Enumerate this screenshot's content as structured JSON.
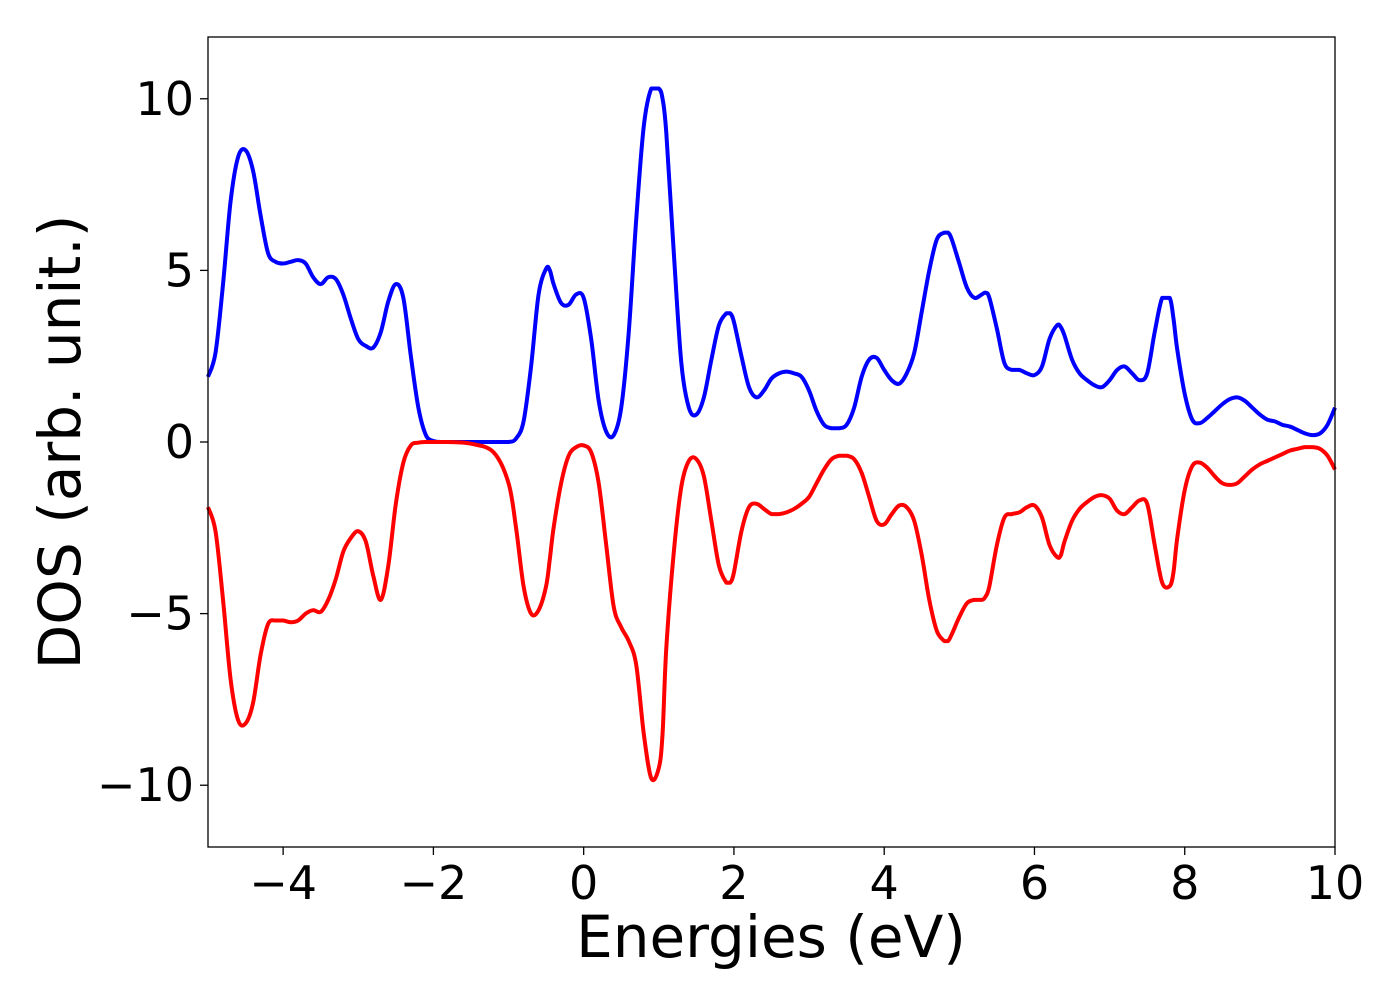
{
  "chart_data": {
    "type": "line",
    "title": "",
    "xlabel": "Energies (eV)",
    "ylabel": "DOS (arb. unit.)",
    "xlim": [
      -5,
      10
    ],
    "ylim": [
      -11.8,
      11.8
    ],
    "xticks": [
      -4,
      -2,
      0,
      2,
      4,
      6,
      8,
      10
    ],
    "xtick_labels": [
      "−4",
      "−2",
      "0",
      "2",
      "4",
      "6",
      "8",
      "10"
    ],
    "yticks": [
      -10,
      -5,
      0,
      5,
      10
    ],
    "ytick_labels": [
      "−10",
      "−5",
      "0",
      "5",
      "10"
    ],
    "grid": false,
    "legend": "none",
    "series": [
      {
        "color": "#0000ff",
        "x": [
          -5.0,
          -4.9,
          -4.8,
          -4.7,
          -4.6,
          -4.5,
          -4.4,
          -4.3,
          -4.2,
          -4.1,
          -4.0,
          -3.9,
          -3.8,
          -3.7,
          -3.6,
          -3.5,
          -3.4,
          -3.3,
          -3.2,
          -3.1,
          -3.0,
          -2.9,
          -2.8,
          -2.7,
          -2.6,
          -2.5,
          -2.4,
          -2.3,
          -2.2,
          -2.1,
          -2.0,
          -1.9,
          -1.8,
          -1.5,
          -1.2,
          -1.0,
          -0.9,
          -0.8,
          -0.7,
          -0.6,
          -0.5,
          -0.45,
          -0.4,
          -0.3,
          -0.2,
          -0.1,
          0.0,
          0.1,
          0.2,
          0.3,
          0.4,
          0.5,
          0.6,
          0.7,
          0.8,
          0.9,
          1.0,
          1.05,
          1.1,
          1.2,
          1.3,
          1.4,
          1.5,
          1.6,
          1.7,
          1.8,
          1.9,
          1.95,
          2.0,
          2.1,
          2.2,
          2.3,
          2.4,
          2.5,
          2.6,
          2.7,
          2.8,
          2.9,
          3.0,
          3.1,
          3.2,
          3.3,
          3.4,
          3.5,
          3.6,
          3.7,
          3.8,
          3.9,
          4.0,
          4.1,
          4.2,
          4.3,
          4.4,
          4.5,
          4.6,
          4.7,
          4.8,
          4.85,
          4.9,
          5.0,
          5.1,
          5.2,
          5.3,
          5.35,
          5.4,
          5.5,
          5.6,
          5.7,
          5.8,
          5.9,
          6.0,
          6.1,
          6.2,
          6.3,
          6.35,
          6.4,
          6.5,
          6.6,
          6.7,
          6.8,
          6.9,
          7.0,
          7.1,
          7.2,
          7.3,
          7.4,
          7.5,
          7.6,
          7.7,
          7.8,
          7.85,
          7.9,
          8.0,
          8.1,
          8.2,
          8.3,
          8.4,
          8.5,
          8.6,
          8.7,
          8.8,
          8.9,
          9.0,
          9.1,
          9.2,
          9.3,
          9.4,
          9.5,
          9.6,
          9.7,
          9.8,
          9.9,
          10.0
        ],
        "y": [
          1.9,
          2.6,
          4.6,
          7.0,
          8.3,
          8.5,
          7.9,
          6.6,
          5.5,
          5.25,
          5.2,
          5.25,
          5.3,
          5.2,
          4.8,
          4.6,
          4.8,
          4.75,
          4.3,
          3.6,
          3.0,
          2.8,
          2.75,
          3.2,
          4.1,
          4.6,
          4.2,
          2.5,
          1.0,
          0.2,
          0.03,
          0.0,
          0.0,
          0.0,
          0.0,
          0.0,
          0.1,
          0.6,
          2.2,
          4.3,
          5.05,
          5.0,
          4.6,
          4.05,
          4.0,
          4.3,
          4.2,
          3.0,
          1.2,
          0.3,
          0.2,
          1.0,
          3.2,
          6.5,
          9.2,
          10.3,
          10.3,
          10.0,
          9.0,
          5.5,
          2.3,
          1.0,
          0.8,
          1.3,
          2.4,
          3.4,
          3.75,
          3.75,
          3.5,
          2.5,
          1.6,
          1.3,
          1.5,
          1.85,
          2.0,
          2.05,
          2.0,
          1.9,
          1.5,
          0.9,
          0.5,
          0.4,
          0.4,
          0.5,
          1.0,
          1.9,
          2.4,
          2.45,
          2.1,
          1.8,
          1.7,
          2.0,
          2.6,
          3.8,
          5.0,
          5.9,
          6.1,
          6.1,
          5.9,
          5.2,
          4.5,
          4.2,
          4.3,
          4.35,
          4.2,
          3.3,
          2.3,
          2.1,
          2.1,
          2.0,
          1.95,
          2.2,
          3.0,
          3.4,
          3.35,
          3.1,
          2.4,
          2.0,
          1.8,
          1.65,
          1.6,
          1.8,
          2.1,
          2.2,
          2.0,
          1.8,
          2.0,
          3.2,
          4.2,
          4.2,
          3.6,
          2.7,
          1.4,
          0.65,
          0.55,
          0.7,
          0.9,
          1.1,
          1.25,
          1.3,
          1.2,
          1.0,
          0.8,
          0.65,
          0.6,
          0.5,
          0.45,
          0.35,
          0.25,
          0.2,
          0.25,
          0.5,
          1.0
        ]
      },
      {
        "color": "#ff0000",
        "x": [
          -5.0,
          -4.9,
          -4.8,
          -4.7,
          -4.6,
          -4.5,
          -4.4,
          -4.3,
          -4.2,
          -4.1,
          -4.0,
          -3.9,
          -3.8,
          -3.7,
          -3.6,
          -3.5,
          -3.4,
          -3.3,
          -3.2,
          -3.1,
          -3.0,
          -2.9,
          -2.8,
          -2.7,
          -2.6,
          -2.5,
          -2.4,
          -2.3,
          -2.2,
          -2.1,
          -2.0,
          -1.9,
          -1.8,
          -1.5,
          -1.2,
          -1.0,
          -0.9,
          -0.8,
          -0.7,
          -0.6,
          -0.5,
          -0.45,
          -0.4,
          -0.3,
          -0.2,
          -0.1,
          0.0,
          0.1,
          0.2,
          0.3,
          0.4,
          0.5,
          0.6,
          0.7,
          0.8,
          0.9,
          1.0,
          1.05,
          1.1,
          1.2,
          1.3,
          1.4,
          1.5,
          1.6,
          1.7,
          1.8,
          1.9,
          1.95,
          2.0,
          2.1,
          2.2,
          2.3,
          2.4,
          2.5,
          2.6,
          2.7,
          2.8,
          2.9,
          3.0,
          3.1,
          3.2,
          3.3,
          3.4,
          3.5,
          3.6,
          3.7,
          3.8,
          3.9,
          4.0,
          4.1,
          4.2,
          4.3,
          4.4,
          4.5,
          4.6,
          4.7,
          4.8,
          4.85,
          4.9,
          5.0,
          5.1,
          5.2,
          5.3,
          5.35,
          5.4,
          5.5,
          5.6,
          5.7,
          5.8,
          5.9,
          6.0,
          6.1,
          6.2,
          6.3,
          6.35,
          6.4,
          6.5,
          6.6,
          6.7,
          6.8,
          6.9,
          7.0,
          7.1,
          7.2,
          7.3,
          7.4,
          7.5,
          7.6,
          7.7,
          7.8,
          7.85,
          7.9,
          8.0,
          8.1,
          8.2,
          8.3,
          8.4,
          8.5,
          8.6,
          8.7,
          8.8,
          8.9,
          9.0,
          9.1,
          9.2,
          9.3,
          9.4,
          9.5,
          9.6,
          9.7,
          9.8,
          9.9,
          10.0
        ],
        "y": [
          -1.9,
          -2.6,
          -4.6,
          -6.9,
          -8.1,
          -8.2,
          -7.6,
          -6.2,
          -5.3,
          -5.2,
          -5.2,
          -5.25,
          -5.2,
          -5.0,
          -4.9,
          -4.95,
          -4.6,
          -4.0,
          -3.2,
          -2.8,
          -2.6,
          -2.9,
          -3.9,
          -4.6,
          -3.6,
          -1.8,
          -0.6,
          -0.1,
          -0.02,
          0.0,
          0.0,
          0.0,
          0.0,
          -0.05,
          -0.3,
          -1.2,
          -2.5,
          -4.2,
          -5.0,
          -4.9,
          -4.2,
          -3.4,
          -2.5,
          -1.2,
          -0.4,
          -0.15,
          -0.1,
          -0.3,
          -1.2,
          -3.0,
          -4.8,
          -5.4,
          -5.8,
          -6.5,
          -8.5,
          -9.8,
          -9.5,
          -8.5,
          -6.0,
          -3.2,
          -1.3,
          -0.55,
          -0.5,
          -1.0,
          -2.3,
          -3.6,
          -4.1,
          -4.1,
          -3.8,
          -2.6,
          -1.9,
          -1.8,
          -1.95,
          -2.1,
          -2.1,
          -2.05,
          -1.95,
          -1.8,
          -1.6,
          -1.2,
          -0.8,
          -0.5,
          -0.4,
          -0.4,
          -0.5,
          -0.9,
          -1.6,
          -2.3,
          -2.4,
          -2.1,
          -1.85,
          -1.9,
          -2.3,
          -3.3,
          -4.6,
          -5.5,
          -5.8,
          -5.8,
          -5.6,
          -5.1,
          -4.7,
          -4.6,
          -4.6,
          -4.5,
          -4.2,
          -3.0,
          -2.2,
          -2.1,
          -2.05,
          -1.9,
          -1.85,
          -2.2,
          -3.0,
          -3.35,
          -3.3,
          -2.9,
          -2.3,
          -1.95,
          -1.75,
          -1.6,
          -1.55,
          -1.65,
          -2.0,
          -2.1,
          -1.9,
          -1.7,
          -1.8,
          -3.0,
          -4.1,
          -4.2,
          -3.8,
          -2.8,
          -1.4,
          -0.7,
          -0.6,
          -0.75,
          -1.0,
          -1.2,
          -1.25,
          -1.2,
          -1.0,
          -0.8,
          -0.65,
          -0.55,
          -0.45,
          -0.35,
          -0.25,
          -0.2,
          -0.15,
          -0.15,
          -0.2,
          -0.4,
          -0.8
        ]
      }
    ]
  }
}
